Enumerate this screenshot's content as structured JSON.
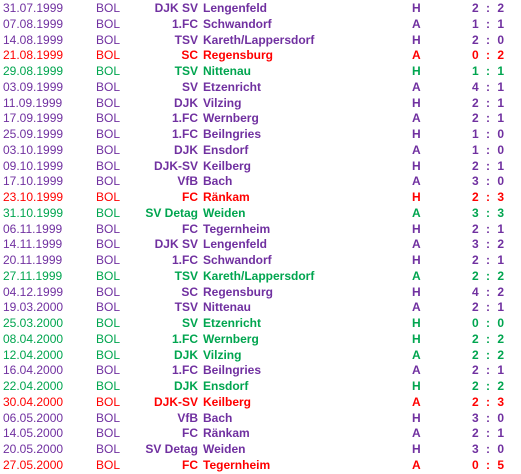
{
  "colors": {
    "W": "#00a54f",
    "D": "#7030a0",
    "L": "#ff0000"
  },
  "matches": [
    {
      "date": "31.07.1999",
      "team": "BOL",
      "prefix": "DJK SV",
      "club": "Lengenfeld",
      "ha": "H",
      "score": "2 : 2",
      "result": "D"
    },
    {
      "date": "07.08.1999",
      "team": "BOL",
      "prefix": "1.FC",
      "club": "Schwandorf",
      "ha": "A",
      "score": "1 : 1",
      "result": "D"
    },
    {
      "date": "14.08.1999",
      "team": "BOL",
      "prefix": "TSV",
      "club": "Kareth/Lappersdorf",
      "ha": "H",
      "score": "2 : 0",
      "result": "D"
    },
    {
      "date": "21.08.1999",
      "team": "BOL",
      "prefix": "SC",
      "club": "Regensburg",
      "ha": "A",
      "score": "0 : 2",
      "result": "L"
    },
    {
      "date": "29.08.1999",
      "team": "BOL",
      "prefix": "TSV",
      "club": "Nittenau",
      "ha": "H",
      "score": "1 : 1",
      "result": "W"
    },
    {
      "date": "03.09.1999",
      "team": "BOL",
      "prefix": "SV",
      "club": "Etzenricht",
      "ha": "A",
      "score": "4 : 1",
      "result": "D"
    },
    {
      "date": "11.09.1999",
      "team": "BOL",
      "prefix": "DJK",
      "club": "Vilzing",
      "ha": "H",
      "score": "2 : 1",
      "result": "D"
    },
    {
      "date": "17.09.1999",
      "team": "BOL",
      "prefix": "1.FC",
      "club": "Wernberg",
      "ha": "A",
      "score": "2 : 1",
      "result": "D"
    },
    {
      "date": "25.09.1999",
      "team": "BOL",
      "prefix": "1.FC",
      "club": "Beilngries",
      "ha": "H",
      "score": "1 : 0",
      "result": "D"
    },
    {
      "date": "03.10.1999",
      "team": "BOL",
      "prefix": "DJK",
      "club": "Ensdorf",
      "ha": "A",
      "score": "1 : 0",
      "result": "D"
    },
    {
      "date": "09.10.1999",
      "team": "BOL",
      "prefix": "DJK-SV",
      "club": "Keilberg",
      "ha": "H",
      "score": "2 : 1",
      "result": "D"
    },
    {
      "date": "17.10.1999",
      "team": "BOL",
      "prefix": "VfB",
      "club": "Bach",
      "ha": "A",
      "score": "3 : 0",
      "result": "D"
    },
    {
      "date": "23.10.1999",
      "team": "BOL",
      "prefix": "FC",
      "club": "Ränkam",
      "ha": "H",
      "score": "2 : 3",
      "result": "L"
    },
    {
      "date": "31.10.1999",
      "team": "BOL",
      "prefix": "SV Detag",
      "club": "Weiden",
      "ha": "A",
      "score": "3 : 3",
      "result": "W"
    },
    {
      "date": "06.11.1999",
      "team": "BOL",
      "prefix": "FC",
      "club": "Tegernheim",
      "ha": "H",
      "score": "2 : 1",
      "result": "D"
    },
    {
      "date": "14.11.1999",
      "team": "BOL",
      "prefix": "DJK SV",
      "club": "Lengenfeld",
      "ha": "A",
      "score": "3 : 2",
      "result": "D"
    },
    {
      "date": "20.11.1999",
      "team": "BOL",
      "prefix": "1.FC",
      "club": "Schwandorf",
      "ha": "H",
      "score": "2 : 1",
      "result": "D"
    },
    {
      "date": "27.11.1999",
      "team": "BOL",
      "prefix": "TSV",
      "club": "Kareth/Lappersdorf",
      "ha": "A",
      "score": "2 : 2",
      "result": "W"
    },
    {
      "date": "04.12.1999",
      "team": "BOL",
      "prefix": "SC",
      "club": "Regensburg",
      "ha": "H",
      "score": "4 : 2",
      "result": "D"
    },
    {
      "date": "19.03.2000",
      "team": "BOL",
      "prefix": "TSV",
      "club": "Nittenau",
      "ha": "A",
      "score": "2 : 1",
      "result": "D"
    },
    {
      "date": "25.03.2000",
      "team": "BOL",
      "prefix": "SV",
      "club": "Etzenricht",
      "ha": "H",
      "score": "0 : 0",
      "result": "W"
    },
    {
      "date": "08.04.2000",
      "team": "BOL",
      "prefix": "1.FC",
      "club": "Wernberg",
      "ha": "H",
      "score": "2 : 2",
      "result": "W"
    },
    {
      "date": "12.04.2000",
      "team": "BOL",
      "prefix": "DJK",
      "club": "Vilzing",
      "ha": "A",
      "score": "2 : 2",
      "result": "W"
    },
    {
      "date": "16.04.2000",
      "team": "BOL",
      "prefix": "1.FC",
      "club": "Beilngries",
      "ha": "A",
      "score": "2 : 1",
      "result": "D"
    },
    {
      "date": "22.04.2000",
      "team": "BOL",
      "prefix": "DJK",
      "club": "Ensdorf",
      "ha": "H",
      "score": "2 : 2",
      "result": "W"
    },
    {
      "date": "30.04.2000",
      "team": "BOL",
      "prefix": "DJK-SV",
      "club": "Keilberg",
      "ha": "A",
      "score": "2 : 3",
      "result": "L"
    },
    {
      "date": "06.05.2000",
      "team": "BOL",
      "prefix": "VfB",
      "club": "Bach",
      "ha": "H",
      "score": "3 : 0",
      "result": "D"
    },
    {
      "date": "14.05.2000",
      "team": "BOL",
      "prefix": "FC",
      "club": "Ränkam",
      "ha": "A",
      "score": "2 : 1",
      "result": "D"
    },
    {
      "date": "20.05.2000",
      "team": "BOL",
      "prefix": "SV Detag",
      "club": "Weiden",
      "ha": "H",
      "score": "3 : 0",
      "result": "D"
    },
    {
      "date": "27.05.2000",
      "team": "BOL",
      "prefix": "FC",
      "club": "Tegernheim",
      "ha": "A",
      "score": "0 : 5",
      "result": "L"
    }
  ]
}
